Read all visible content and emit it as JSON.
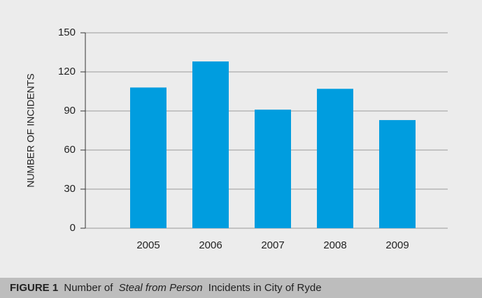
{
  "chart_data": {
    "type": "bar",
    "y_axis_label": "NUMBER OF INCIDENTS",
    "categories": [
      "2005",
      "2006",
      "2007",
      "2008",
      "2009"
    ],
    "values": [
      108,
      128,
      91,
      107,
      83
    ],
    "color": "#009ddf",
    "ylim": [
      0,
      150
    ],
    "yticks": [
      0,
      30,
      60,
      90,
      120,
      150
    ],
    "grid": true,
    "caption": [
      "FIGURE 1",
      "Number of",
      "Steal from Person",
      "Incidents in City of Ryde"
    ]
  }
}
